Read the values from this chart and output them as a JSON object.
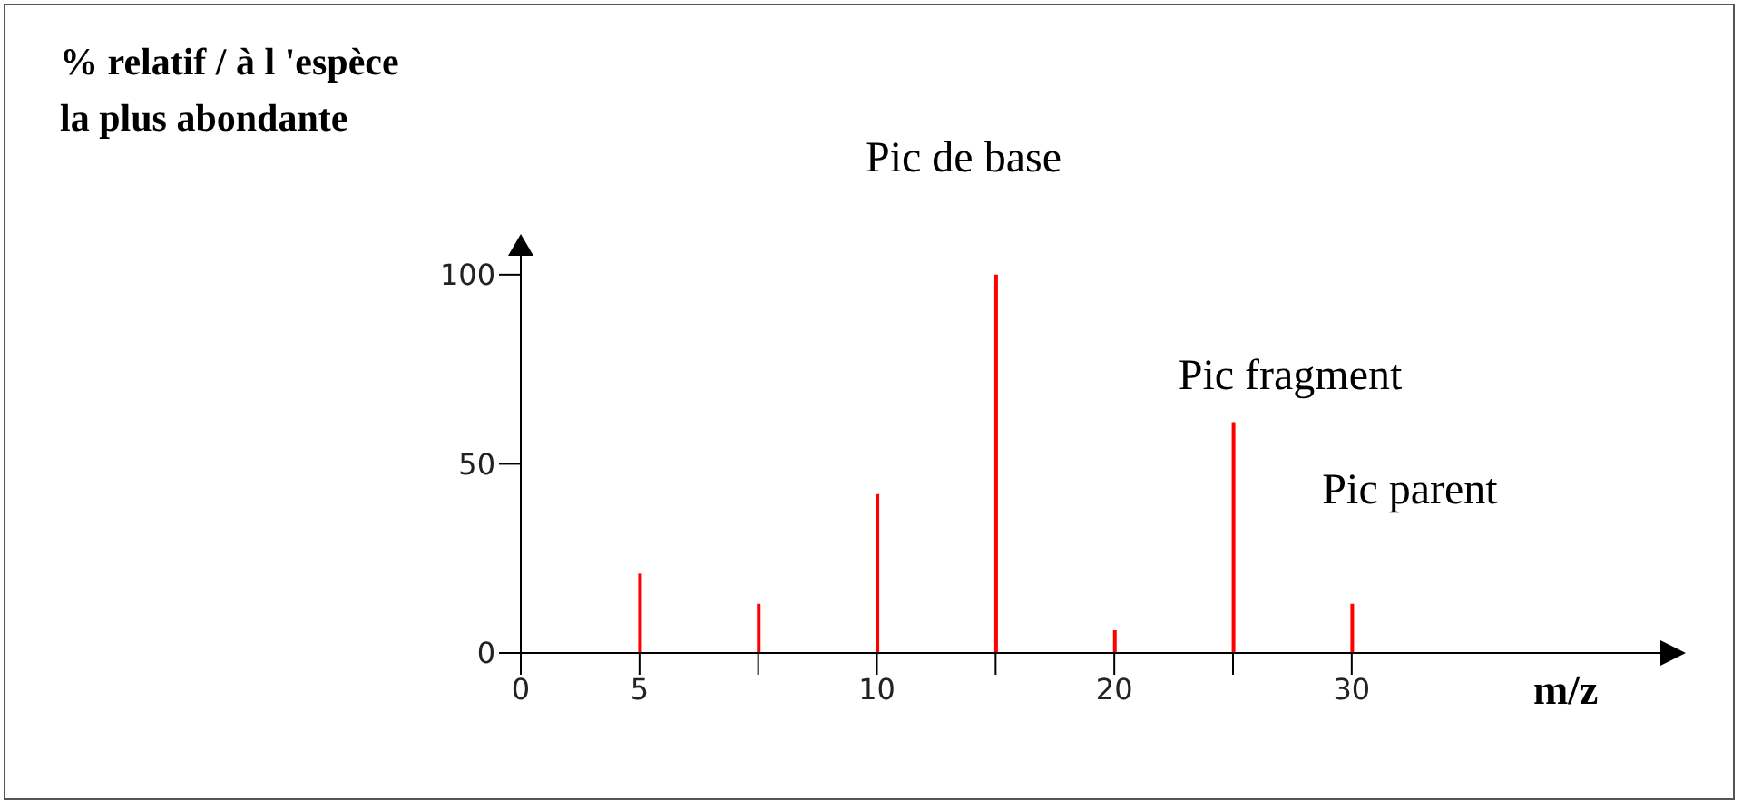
{
  "chart_data": {
    "type": "bar",
    "ylabel": "% relatif / à l 'espèce\nla plus abondante",
    "xlabel": "m/z",
    "categories": [
      "0",
      "5",
      null,
      "10",
      null,
      "20",
      null,
      "30"
    ],
    "values": [
      null,
      21,
      13,
      42,
      100,
      6,
      61,
      13
    ],
    "color": "#ff0000",
    "ylim": [
      0,
      105
    ],
    "yticks": [
      0,
      50,
      100
    ],
    "annotations": [
      "Pic de base",
      "Pic fragment",
      "Pic parent"
    ]
  }
}
